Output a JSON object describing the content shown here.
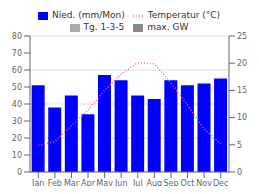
{
  "chart_data": {
    "type": "bar",
    "categories": [
      "Jan",
      "Feb",
      "Mar",
      "Apr",
      "May",
      "Jun",
      "Jul",
      "Aug",
      "Sep",
      "Oct",
      "Nov",
      "Dec"
    ],
    "series": [
      {
        "name": "Nied. (mm/Mon)",
        "type": "bar",
        "color": "#0000ff",
        "values": [
          51,
          38,
          45,
          34,
          57,
          54,
          45,
          43,
          54,
          51,
          52,
          55
        ]
      },
      {
        "name": "Temperatur (°C)",
        "type": "line",
        "color": "#ff6666",
        "line_style": "dotted",
        "axis": "y2",
        "values": [
          4.9,
          5.6,
          8.5,
          11.4,
          15.0,
          18.0,
          20.1,
          19.9,
          16.4,
          12.3,
          7.9,
          5.2
        ]
      },
      {
        "name": "Tg. 1-3-5",
        "type": "bar",
        "color": "#aaaaaa",
        "values": [
          null,
          null,
          null,
          null,
          null,
          null,
          null,
          null,
          null,
          null,
          null,
          null
        ]
      },
      {
        "name": "max. GW",
        "type": "bar",
        "color": "#888888",
        "values": [
          null,
          null,
          null,
          null,
          null,
          null,
          null,
          null,
          null,
          null,
          null,
          null
        ]
      }
    ],
    "ylim": [
      0,
      80
    ],
    "yticks": [
      0,
      10,
      20,
      30,
      40,
      50,
      60,
      70,
      80
    ],
    "y2lim": [
      0,
      25
    ],
    "y2ticks": [
      0,
      5,
      10,
      15,
      20,
      25
    ],
    "grid": true,
    "legend": "top"
  }
}
